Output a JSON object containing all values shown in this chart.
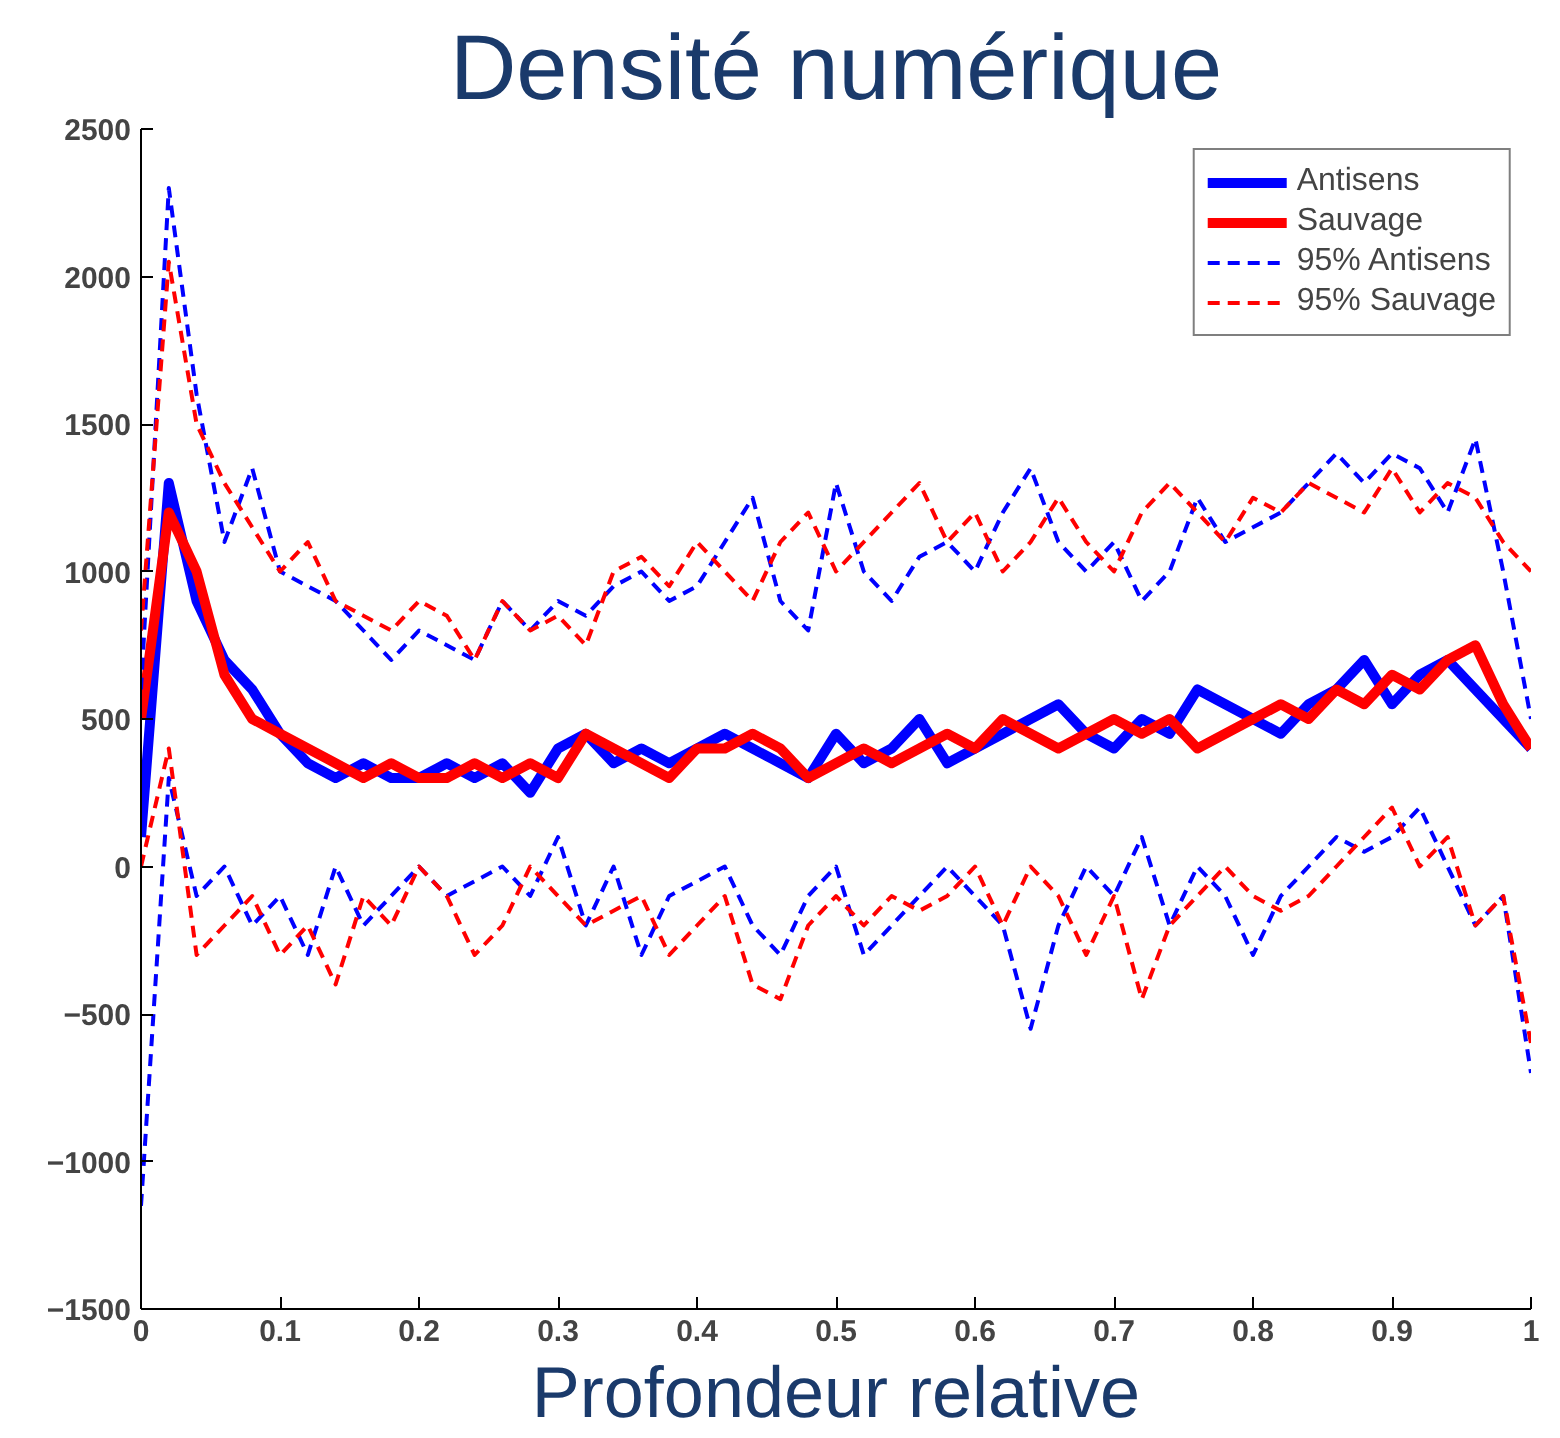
{
  "chart_data": {
    "type": "line",
    "title": "Densité numérique",
    "xlabel": "Profondeur relative",
    "x": [
      0,
      0.02,
      0.04,
      0.06,
      0.08,
      0.1,
      0.12,
      0.14,
      0.16,
      0.18,
      0.2,
      0.22,
      0.24,
      0.26,
      0.28,
      0.3,
      0.32,
      0.34,
      0.36,
      0.38,
      0.4,
      0.42,
      0.44,
      0.46,
      0.48,
      0.5,
      0.52,
      0.54,
      0.56,
      0.58,
      0.6,
      0.62,
      0.64,
      0.66,
      0.68,
      0.7,
      0.72,
      0.74,
      0.76,
      0.78,
      0.8,
      0.82,
      0.84,
      0.86,
      0.88,
      0.9,
      0.92,
      0.94,
      0.96,
      0.98,
      1.0
    ],
    "xlim": [
      0,
      1
    ],
    "xticks": [
      0,
      0.1,
      0.2,
      0.3,
      0.4,
      0.5,
      0.6,
      0.7,
      0.8,
      0.9,
      1
    ],
    "ylim": [
      -1500,
      2500
    ],
    "yticks": [
      -1500,
      -1000,
      -500,
      0,
      500,
      1000,
      1500,
      2000,
      2500
    ],
    "grid": false,
    "legend": "top right",
    "series": [
      {
        "name": "Antisens",
        "color": "#0000ff",
        "line_style": "solid",
        "values": [
          100,
          1300,
          900,
          700,
          600,
          450,
          350,
          300,
          350,
          300,
          300,
          350,
          300,
          350,
          250,
          400,
          450,
          350,
          400,
          350,
          400,
          450,
          400,
          350,
          300,
          450,
          350,
          400,
          500,
          350,
          400,
          450,
          500,
          550,
          450,
          400,
          500,
          450,
          600,
          550,
          500,
          450,
          550,
          600,
          700,
          550,
          650,
          700,
          600,
          500,
          400
        ]
      },
      {
        "name": "Sauvage",
        "color": "#ff0000",
        "line_style": "solid",
        "values": [
          500,
          1200,
          1000,
          650,
          500,
          450,
          400,
          350,
          300,
          350,
          300,
          300,
          350,
          300,
          350,
          300,
          450,
          400,
          350,
          300,
          400,
          400,
          450,
          400,
          300,
          350,
          400,
          350,
          400,
          450,
          400,
          500,
          450,
          400,
          450,
          500,
          450,
          500,
          400,
          450,
          500,
          550,
          500,
          600,
          550,
          650,
          600,
          700,
          750,
          550,
          400
        ]
      },
      {
        "name": "95% Antisens",
        "color": "#0000ff",
        "line_style": "dashed",
        "values": [
          600,
          2300,
          1600,
          1100,
          1350,
          1000,
          950,
          900,
          800,
          700,
          800,
          750,
          700,
          900,
          800,
          900,
          850,
          950,
          1000,
          900,
          950,
          1100,
          1250,
          900,
          800,
          1300,
          1000,
          900,
          1050,
          1100,
          1000,
          1200,
          1350,
          1100,
          1000,
          1100,
          900,
          1000,
          1250,
          1100,
          1150,
          1200,
          1300,
          1400,
          1300,
          1400,
          1350,
          1200,
          1450,
          1000,
          500
        ]
      },
      {
        "color": "#0000ff",
        "line_style": "dashed",
        "values": [
          -1150,
          300,
          -100,
          0,
          -200,
          -100,
          -300,
          0,
          -200,
          -100,
          0,
          -100,
          -50,
          0,
          -100,
          100,
          -200,
          0,
          -300,
          -100,
          -50,
          0,
          -200,
          -300,
          -100,
          0,
          -300,
          -200,
          -100,
          0,
          -100,
          -200,
          -550,
          -200,
          0,
          -100,
          100,
          -200,
          0,
          -100,
          -300,
          -100,
          0,
          100,
          50,
          100,
          200,
          0,
          -200,
          -100,
          -700
        ]
      },
      {
        "name": "95% Sauvage",
        "color": "#ff0000",
        "line_style": "dashed",
        "values": [
          800,
          2050,
          1500,
          1300,
          1150,
          1000,
          1100,
          900,
          850,
          800,
          900,
          850,
          700,
          900,
          800,
          850,
          750,
          1000,
          1050,
          950,
          1100,
          1000,
          900,
          1100,
          1200,
          1000,
          1100,
          1200,
          1300,
          1100,
          1200,
          1000,
          1100,
          1250,
          1100,
          1000,
          1200,
          1300,
          1200,
          1100,
          1250,
          1200,
          1300,
          1250,
          1200,
          1350,
          1200,
          1300,
          1250,
          1100,
          1000
        ]
      },
      {
        "color": "#ff0000",
        "line_style": "dashed",
        "values": [
          0,
          400,
          -300,
          -200,
          -100,
          -300,
          -200,
          -400,
          -100,
          -200,
          0,
          -100,
          -300,
          -200,
          0,
          -100,
          -200,
          -150,
          -100,
          -300,
          -200,
          -100,
          -400,
          -450,
          -200,
          -100,
          -200,
          -100,
          -150,
          -100,
          0,
          -200,
          0,
          -100,
          -300,
          -100,
          -450,
          -200,
          -100,
          0,
          -100,
          -150,
          -100,
          0,
          100,
          200,
          0,
          100,
          -200,
          -100,
          -600
        ]
      }
    ]
  }
}
